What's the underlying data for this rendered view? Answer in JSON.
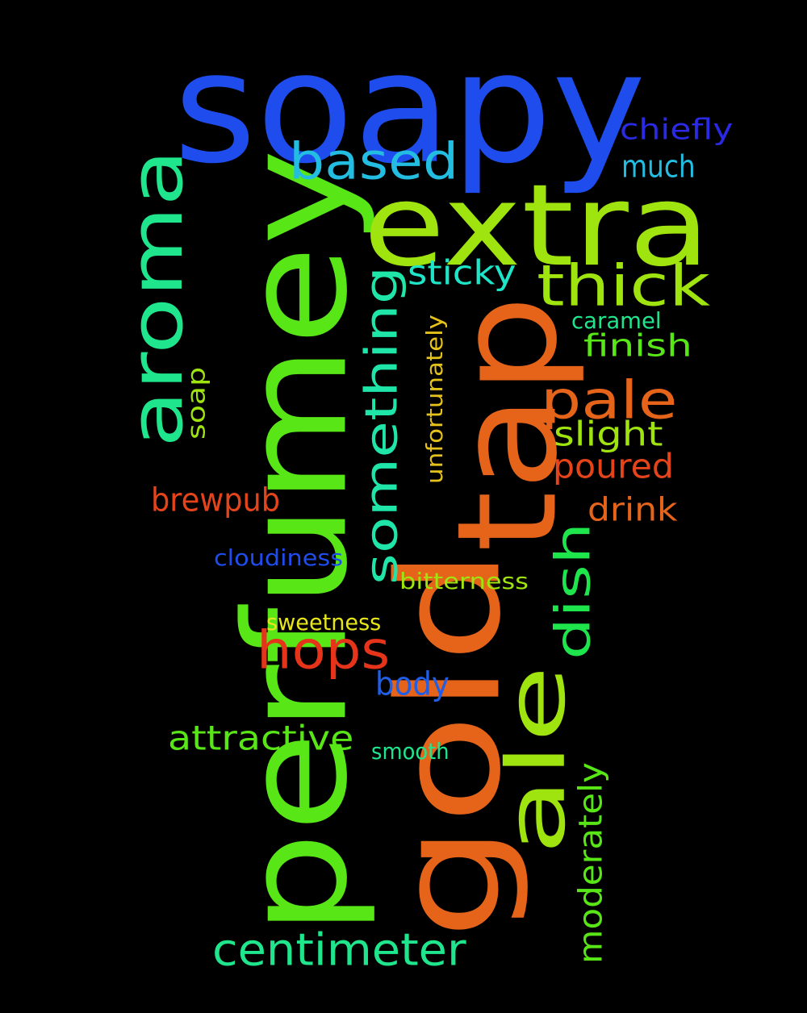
{
  "word_cloud": {
    "background": "#000000",
    "words": [
      {
        "text": "soapy",
        "color": "#1f4ded",
        "rotated": false
      },
      {
        "text": "perfumey",
        "color": "#58e617",
        "rotated": true
      },
      {
        "text": "gold",
        "color": "#e5641a",
        "rotated": true
      },
      {
        "text": "tap",
        "color": "#e5641a",
        "rotated": true
      },
      {
        "text": "extra",
        "color": "#9fe30f",
        "rotated": false
      },
      {
        "text": "aroma",
        "color": "#1fe58c",
        "rotated": true
      },
      {
        "text": "ale",
        "color": "#9fe30f",
        "rotated": true
      },
      {
        "text": "something",
        "color": "#1fe5a9",
        "rotated": true
      },
      {
        "text": "thick",
        "color": "#9fe30f",
        "rotated": false
      },
      {
        "text": "based",
        "color": "#23bde2",
        "rotated": false
      },
      {
        "text": "pale",
        "color": "#e5641a",
        "rotated": false
      },
      {
        "text": "hops",
        "color": "#e5341a",
        "rotated": false
      },
      {
        "text": "dish",
        "color": "#1fe54d",
        "rotated": true
      },
      {
        "text": "centimeter",
        "color": "#1fe58c",
        "rotated": false
      },
      {
        "text": "moderately",
        "color": "#58e617",
        "rotated": true
      },
      {
        "text": "sticky",
        "color": "#1fe5c8",
        "rotated": false
      },
      {
        "text": "attractive",
        "color": "#58e617",
        "rotated": false
      },
      {
        "text": "brewpub",
        "color": "#e5441a",
        "rotated": false
      },
      {
        "text": "poured",
        "color": "#e5441a",
        "rotated": false
      },
      {
        "text": "drink",
        "color": "#e5641a",
        "rotated": false
      },
      {
        "text": "slight",
        "color": "#9fe30f",
        "rotated": false
      },
      {
        "text": "finish",
        "color": "#58e617",
        "rotated": false
      },
      {
        "text": "body",
        "color": "#1f5ee5",
        "rotated": false
      },
      {
        "text": "much",
        "color": "#23bde2",
        "rotated": false
      },
      {
        "text": "chiefly",
        "color": "#2a2ae5",
        "rotated": false
      },
      {
        "text": "soap",
        "color": "#9fe30f",
        "rotated": true
      },
      {
        "text": "unfortunately",
        "color": "#e5c21a",
        "rotated": true
      },
      {
        "text": "cloudiness",
        "color": "#1f4ded",
        "rotated": false
      },
      {
        "text": "bitterness",
        "color": "#9fe30f",
        "rotated": false
      },
      {
        "text": "sweetness",
        "color": "#e5e51a",
        "rotated": false
      },
      {
        "text": "smooth",
        "color": "#1fe58c",
        "rotated": false
      },
      {
        "text": "caramel",
        "color": "#1fe58c",
        "rotated": false
      }
    ]
  }
}
